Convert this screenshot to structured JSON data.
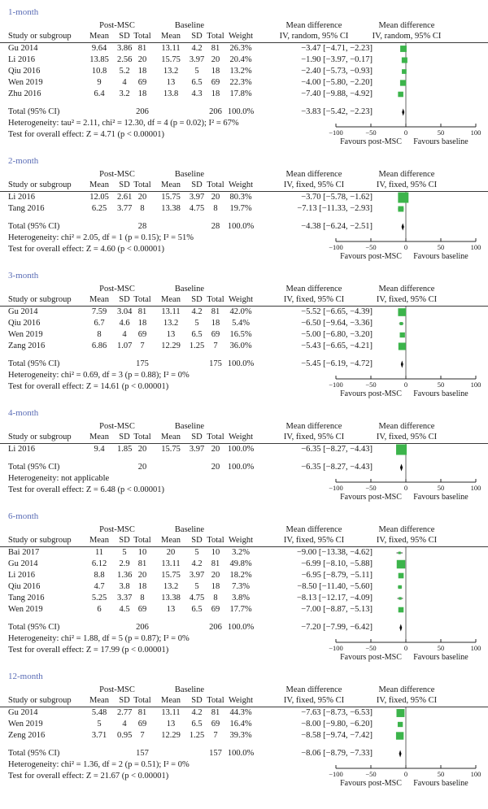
{
  "colors": {
    "marker_green": "#3cb44b",
    "diamond_black": "#0a0a0a",
    "section_label_blue": "#5b6db6",
    "rule_gray": "#3a3a3a"
  },
  "columns": {
    "study": "Study or subgroup",
    "group1": "Post-MSC",
    "group2": "Baseline",
    "mean": "Mean",
    "sd": "SD",
    "total": "Total",
    "weight": "Weight",
    "md": "Mean difference"
  },
  "axis": {
    "min": -100,
    "max": 100,
    "tick_values": [
      -100,
      -50,
      0,
      50,
      100
    ],
    "ticks": [
      "−100",
      "−50",
      "0",
      "50",
      "100"
    ],
    "favours_left": "Favours post-MSC",
    "favours_right": "Favours baseline"
  },
  "chart_data": [
    {
      "type": "forest",
      "label": "1-month",
      "method": "IV, random, 95% CI",
      "rows": [
        {
          "study": "Gu 2014",
          "post": {
            "mean": "9.64",
            "sd": "3.86",
            "total": "81"
          },
          "base": {
            "mean": "13.11",
            "sd": "4.2",
            "total": "81"
          },
          "weight": "26.3%",
          "weight_pct": 26.3,
          "md": -3.47,
          "ci_lo": -4.71,
          "ci_hi": -2.23,
          "md_text": "−3.47 [−4.71, −2.23]"
        },
        {
          "study": "Li 2016",
          "post": {
            "mean": "13.85",
            "sd": "2.56",
            "total": "20"
          },
          "base": {
            "mean": "15.75",
            "sd": "3.97",
            "total": "20"
          },
          "weight": "20.4%",
          "weight_pct": 20.4,
          "md": -1.9,
          "ci_lo": -3.97,
          "ci_hi": -0.17,
          "md_text": "−1.90 [−3.97, −0.17]"
        },
        {
          "study": "Qiu 2016",
          "post": {
            "mean": "10.8",
            "sd": "5.2",
            "total": "18"
          },
          "base": {
            "mean": "13.2",
            "sd": "5",
            "total": "18"
          },
          "weight": "13.2%",
          "weight_pct": 13.2,
          "md": -2.4,
          "ci_lo": -5.73,
          "ci_hi": -0.93,
          "md_text": "−2.40 [−5.73, −0.93]"
        },
        {
          "study": "Wen 2019",
          "post": {
            "mean": "9",
            "sd": "4",
            "total": "69"
          },
          "base": {
            "mean": "13",
            "sd": "6.5",
            "total": "69"
          },
          "weight": "22.3%",
          "weight_pct": 22.3,
          "md": -4.0,
          "ci_lo": -5.8,
          "ci_hi": -2.2,
          "md_text": "−4.00 [−5.80, −2.20]"
        },
        {
          "study": "Zhu 2016",
          "post": {
            "mean": "6.4",
            "sd": "3.2",
            "total": "18"
          },
          "base": {
            "mean": "13.8",
            "sd": "4.3",
            "total": "18"
          },
          "weight": "17.8%",
          "weight_pct": 17.8,
          "md": -7.4,
          "ci_lo": -9.88,
          "ci_hi": -4.92,
          "md_text": "−7.40 [−9.88, −4.92]"
        }
      ],
      "total": {
        "label": "Total (95% CI)",
        "post_total": "206",
        "base_total": "206",
        "weight": "100.0%",
        "md": -3.83,
        "ci_lo": -5.42,
        "ci_hi": -2.23,
        "md_text": "−3.83 [−5.42, −2.23]"
      },
      "heterogeneity": "Heterogeneity: tau² = 2.11, chi² = 12.30, df = 4 (p = 0.02); I² = 67%",
      "overall_test": "Test for overall effect: Z = 4.71 (p < 0.00001)"
    },
    {
      "type": "forest",
      "label": "2-month",
      "method": "IV, fixed, 95% CI",
      "rows": [
        {
          "study": "Li 2016",
          "post": {
            "mean": "12.05",
            "sd": "2.61",
            "total": "20"
          },
          "base": {
            "mean": "15.75",
            "sd": "3.97",
            "total": "20"
          },
          "weight": "80.3%",
          "weight_pct": 80.3,
          "md": -3.7,
          "ci_lo": -5.78,
          "ci_hi": -1.62,
          "md_text": "−3.70 [−5.78, −1.62]"
        },
        {
          "study": "Tang 2016",
          "post": {
            "mean": "6.25",
            "sd": "3.77",
            "total": "8"
          },
          "base": {
            "mean": "13.38",
            "sd": "4.75",
            "total": "8"
          },
          "weight": "19.7%",
          "weight_pct": 19.7,
          "md": -7.13,
          "ci_lo": -11.33,
          "ci_hi": -2.93,
          "md_text": "−7.13 [−11.33, −2.93]"
        }
      ],
      "total": {
        "label": "Total (95% CI)",
        "post_total": "28",
        "base_total": "28",
        "weight": "100.0%",
        "md": -4.38,
        "ci_lo": -6.24,
        "ci_hi": -2.51,
        "md_text": "−4.38 [−6.24, −2.51]"
      },
      "heterogeneity": "Heterogeneity: chi² = 2.05, df = 1 (p = 0.15); I² = 51%",
      "overall_test": "Test for overall effect: Z = 4.60 (p < 0.00001)"
    },
    {
      "type": "forest",
      "label": "3-month",
      "method": "IV, fixed, 95% CI",
      "rows": [
        {
          "study": "Gu 2014",
          "post": {
            "mean": "7.59",
            "sd": "3.04",
            "total": "81"
          },
          "base": {
            "mean": "13.11",
            "sd": "4.2",
            "total": "81"
          },
          "weight": "42.0%",
          "weight_pct": 42.0,
          "md": -5.52,
          "ci_lo": -6.65,
          "ci_hi": -4.39,
          "md_text": "−5.52 [−6.65, −4.39]"
        },
        {
          "study": "Qiu 2016",
          "post": {
            "mean": "6.7",
            "sd": "4.6",
            "total": "18"
          },
          "base": {
            "mean": "13.2",
            "sd": "5",
            "total": "18"
          },
          "weight": "5.4%",
          "weight_pct": 5.4,
          "md": -6.5,
          "ci_lo": -9.64,
          "ci_hi": -3.36,
          "md_text": "−6.50 [−9.64, −3.36]"
        },
        {
          "study": "Wen 2019",
          "post": {
            "mean": "8",
            "sd": "4",
            "total": "69"
          },
          "base": {
            "mean": "13",
            "sd": "6.5",
            "total": "69"
          },
          "weight": "16.5%",
          "weight_pct": 16.5,
          "md": -5.0,
          "ci_lo": -6.8,
          "ci_hi": -3.2,
          "md_text": "−5.00 [−6.80, −3.20]"
        },
        {
          "study": "Zang 2016",
          "post": {
            "mean": "6.86",
            "sd": "1.07",
            "total": "7"
          },
          "base": {
            "mean": "12.29",
            "sd": "1.25",
            "total": "7"
          },
          "weight": "36.0%",
          "weight_pct": 36.0,
          "md": -5.43,
          "ci_lo": -6.65,
          "ci_hi": -4.21,
          "md_text": "−5.43 [−6.65, −4.21]"
        }
      ],
      "total": {
        "label": "Total (95% CI)",
        "post_total": "175",
        "base_total": "175",
        "weight": "100.0%",
        "md": -5.45,
        "ci_lo": -6.19,
        "ci_hi": -4.72,
        "md_text": "−5.45 [−6.19, −4.72]"
      },
      "heterogeneity": "Heterogeneity: chi² = 0.69, df = 3 (p = 0.88); I² = 0%",
      "overall_test": "Test for overall effect: Z = 14.61 (p < 0.00001)"
    },
    {
      "type": "forest",
      "label": "4-month",
      "method": "IV, fixed, 95% CI",
      "rows": [
        {
          "study": "Li 2016",
          "post": {
            "mean": "9.4",
            "sd": "1.85",
            "total": "20"
          },
          "base": {
            "mean": "15.75",
            "sd": "3.97",
            "total": "20"
          },
          "weight": "100.0%",
          "weight_pct": 100.0,
          "md": -6.35,
          "ci_lo": -8.27,
          "ci_hi": -4.43,
          "md_text": "−6.35 [−8.27, −4.43]"
        }
      ],
      "total": {
        "label": "Total (95% CI)",
        "post_total": "20",
        "base_total": "20",
        "weight": "100.0%",
        "md": -6.35,
        "ci_lo": -8.27,
        "ci_hi": -4.43,
        "md_text": "−6.35 [−8.27, −4.43]"
      },
      "heterogeneity": "Heterogeneity: not applicable",
      "overall_test": "Test for overall effect: Z = 6.48 (p < 0.00001)"
    },
    {
      "type": "forest",
      "label": "6-month",
      "method": "IV, fixed, 95% CI",
      "rows": [
        {
          "study": "Bai 2017",
          "post": {
            "mean": "11",
            "sd": "5",
            "total": "10"
          },
          "base": {
            "mean": "20",
            "sd": "5",
            "total": "10"
          },
          "weight": "3.2%",
          "weight_pct": 3.2,
          "md": -9.0,
          "ci_lo": -13.38,
          "ci_hi": -4.62,
          "md_text": "−9.00 [−13.38, −4.62]"
        },
        {
          "study": "Gu 2014",
          "post": {
            "mean": "6.12",
            "sd": "2.9",
            "total": "81"
          },
          "base": {
            "mean": "13.11",
            "sd": "4.2",
            "total": "81"
          },
          "weight": "49.8%",
          "weight_pct": 49.8,
          "md": -6.99,
          "ci_lo": -8.1,
          "ci_hi": -5.88,
          "md_text": "−6.99 [−8.10, −5.88]"
        },
        {
          "study": "Li 2016",
          "post": {
            "mean": "8.8",
            "sd": "1.36",
            "total": "20"
          },
          "base": {
            "mean": "15.75",
            "sd": "3.97",
            "total": "20"
          },
          "weight": "18.2%",
          "weight_pct": 18.2,
          "md": -6.95,
          "ci_lo": -8.79,
          "ci_hi": -5.11,
          "md_text": "−6.95 [−8.79, −5.11]"
        },
        {
          "study": "Qiu 2016",
          "post": {
            "mean": "4.7",
            "sd": "3.8",
            "total": "18"
          },
          "base": {
            "mean": "13.2",
            "sd": "5",
            "total": "18"
          },
          "weight": "7.3%",
          "weight_pct": 7.3,
          "md": -8.5,
          "ci_lo": -11.4,
          "ci_hi": -5.6,
          "md_text": "−8.50 [−11.40, −5.60]"
        },
        {
          "study": "Tang 2016",
          "post": {
            "mean": "5.25",
            "sd": "3.37",
            "total": "8"
          },
          "base": {
            "mean": "13.38",
            "sd": "4.75",
            "total": "8"
          },
          "weight": "3.8%",
          "weight_pct": 3.8,
          "md": -8.13,
          "ci_lo": -12.17,
          "ci_hi": -4.09,
          "md_text": "−8.13 [−12.17, −4.09]"
        },
        {
          "study": "Wen 2019",
          "post": {
            "mean": "6",
            "sd": "4.5",
            "total": "69"
          },
          "base": {
            "mean": "13",
            "sd": "6.5",
            "total": "69"
          },
          "weight": "17.7%",
          "weight_pct": 17.7,
          "md": -7.0,
          "ci_lo": -8.87,
          "ci_hi": -5.13,
          "md_text": "−7.00 [−8.87, −5.13]"
        }
      ],
      "total": {
        "label": "Total (95% CI)",
        "post_total": "206",
        "base_total": "206",
        "weight": "100.0%",
        "md": -7.2,
        "ci_lo": -7.99,
        "ci_hi": -6.42,
        "md_text": "−7.20 [−7.99, −6.42]"
      },
      "heterogeneity": "Heterogeneity: chi² = 1.88, df = 5 (p = 0.87); I² = 0%",
      "overall_test": "Test for overall effect: Z = 17.99 (p < 0.00001)"
    },
    {
      "type": "forest",
      "label": "12-month",
      "method": "IV, fixed, 95% CI",
      "rows": [
        {
          "study": "Gu 2014",
          "post": {
            "mean": "5.48",
            "sd": "2.77",
            "total": "81"
          },
          "base": {
            "mean": "13.11",
            "sd": "4.2",
            "total": "81"
          },
          "weight": "44.3%",
          "weight_pct": 44.3,
          "md": -7.63,
          "ci_lo": -8.73,
          "ci_hi": -6.53,
          "md_text": "−7.63 [−8.73, −6.53]"
        },
        {
          "study": "Wen 2019",
          "post": {
            "mean": "5",
            "sd": "4",
            "total": "69"
          },
          "base": {
            "mean": "13",
            "sd": "6.5",
            "total": "69"
          },
          "weight": "16.4%",
          "weight_pct": 16.4,
          "md": -8.0,
          "ci_lo": -9.8,
          "ci_hi": -6.2,
          "md_text": "−8.00 [−9.80, −6.20]"
        },
        {
          "study": "Zeng 2016",
          "post": {
            "mean": "3.71",
            "sd": "0.95",
            "total": "7"
          },
          "base": {
            "mean": "12.29",
            "sd": "1.25",
            "total": "7"
          },
          "weight": "39.3%",
          "weight_pct": 39.3,
          "md": -8.58,
          "ci_lo": -9.74,
          "ci_hi": -7.42,
          "md_text": "−8.58 [−9.74, −7.42]"
        }
      ],
      "total": {
        "label": "Total (95% CI)",
        "post_total": "157",
        "base_total": "157",
        "weight": "100.0%",
        "md": -8.06,
        "ci_lo": -8.79,
        "ci_hi": -7.33,
        "md_text": "−8.06 [−8.79, −7.33]"
      },
      "heterogeneity": "Heterogeneity: chi² = 1.36, df = 2 (p = 0.51); I² = 0%",
      "overall_test": "Test for overall effect: Z = 21.67 (p < 0.00001)"
    }
  ]
}
